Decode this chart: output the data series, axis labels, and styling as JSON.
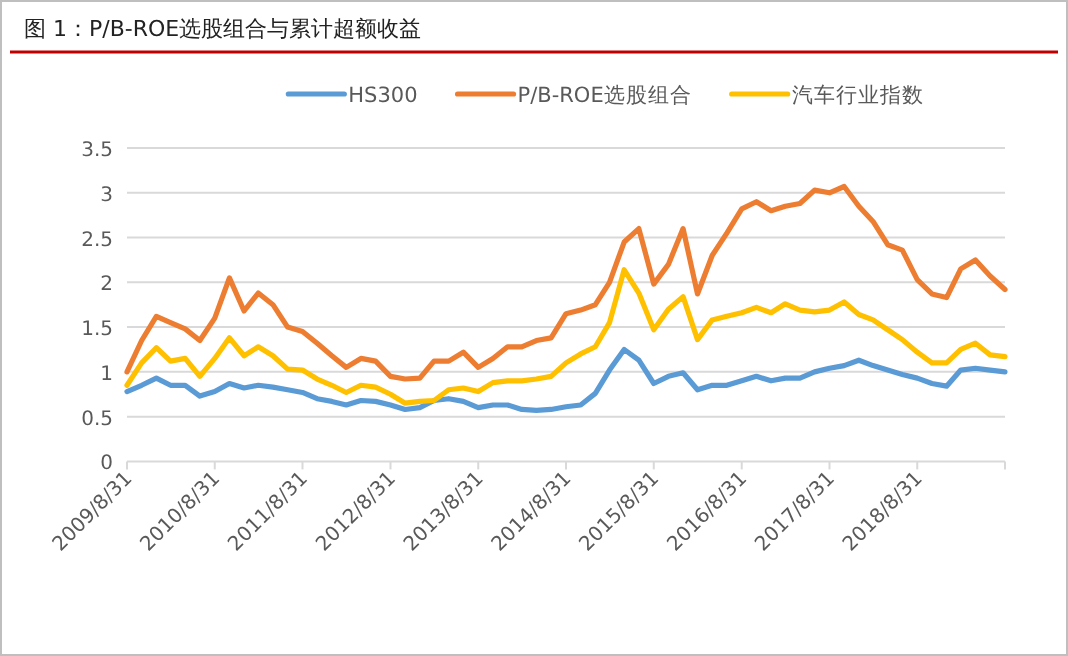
{
  "chart_data": {
    "type": "line",
    "title": "图 1：P/B-ROE选股组合与累计超额收益",
    "x": [
      "2009-08-31",
      "2009-10-31",
      "2009-12-31",
      "2010-02-28",
      "2010-04-30",
      "2010-06-30",
      "2010-08-31",
      "2010-10-31",
      "2010-12-31",
      "2011-02-28",
      "2011-04-30",
      "2011-06-30",
      "2011-08-31",
      "2011-10-31",
      "2011-12-31",
      "2012-02-29",
      "2012-04-30",
      "2012-06-30",
      "2012-08-31",
      "2012-10-31",
      "2012-12-31",
      "2013-02-28",
      "2013-04-30",
      "2013-06-30",
      "2013-08-31",
      "2013-10-31",
      "2013-12-31",
      "2014-02-28",
      "2014-04-30",
      "2014-06-30",
      "2014-08-31",
      "2014-10-31",
      "2014-12-31",
      "2015-02-28",
      "2015-04-30",
      "2015-06-30",
      "2015-08-31",
      "2015-10-31",
      "2015-12-31",
      "2016-02-29",
      "2016-04-30",
      "2016-06-30",
      "2016-08-31",
      "2016-10-31",
      "2016-12-31",
      "2017-02-28",
      "2017-04-30",
      "2017-06-30",
      "2017-08-31",
      "2017-10-31",
      "2017-12-31",
      "2018-02-28",
      "2018-04-30",
      "2018-06-30",
      "2018-08-31",
      "2018-10-31",
      "2018-12-31",
      "2019-02-28",
      "2019-04-30",
      "2019-06-30",
      "2019-08-31"
    ],
    "series": [
      {
        "name": "HS300",
        "color": "#5b9bd5",
        "values": [
          0.78,
          0.85,
          0.93,
          0.85,
          0.85,
          0.73,
          0.78,
          0.87,
          0.82,
          0.85,
          0.83,
          0.8,
          0.77,
          0.7,
          0.67,
          0.63,
          0.68,
          0.67,
          0.63,
          0.58,
          0.6,
          0.68,
          0.7,
          0.67,
          0.6,
          0.63,
          0.63,
          0.58,
          0.57,
          0.58,
          0.61,
          0.63,
          0.76,
          1.02,
          1.25,
          1.13,
          0.87,
          0.95,
          0.99,
          0.8,
          0.85,
          0.85,
          0.9,
          0.95,
          0.9,
          0.93,
          0.93,
          1.0,
          1.04,
          1.07,
          1.13,
          1.07,
          1.02,
          0.97,
          0.93,
          0.87,
          0.84,
          1.02,
          1.04,
          1.02,
          1.0
        ]
      },
      {
        "name": "P/B-ROE选股组合",
        "color": "#ed7d31",
        "values": [
          1.0,
          1.35,
          1.62,
          1.55,
          1.48,
          1.35,
          1.6,
          2.05,
          1.68,
          1.88,
          1.75,
          1.5,
          1.45,
          1.32,
          1.18,
          1.05,
          1.15,
          1.12,
          0.95,
          0.92,
          0.93,
          1.12,
          1.12,
          1.22,
          1.05,
          1.15,
          1.28,
          1.28,
          1.35,
          1.38,
          1.65,
          1.69,
          1.75,
          2.0,
          2.45,
          2.6,
          1.98,
          2.2,
          2.6,
          1.87,
          2.3,
          2.55,
          2.82,
          2.9,
          2.8,
          2.85,
          2.88,
          3.03,
          3.0,
          3.07,
          2.85,
          2.68,
          2.42,
          2.36,
          2.03,
          1.87,
          1.83,
          2.15,
          2.25,
          2.07,
          1.92
        ]
      },
      {
        "name": "汽车行业指数",
        "color": "#ffc000",
        "values": [
          0.85,
          1.1,
          1.27,
          1.12,
          1.15,
          0.95,
          1.15,
          1.38,
          1.18,
          1.28,
          1.18,
          1.03,
          1.02,
          0.92,
          0.85,
          0.77,
          0.85,
          0.83,
          0.75,
          0.65,
          0.67,
          0.68,
          0.8,
          0.82,
          0.78,
          0.88,
          0.9,
          0.9,
          0.92,
          0.95,
          1.1,
          1.2,
          1.28,
          1.55,
          2.14,
          1.88,
          1.47,
          1.7,
          1.84,
          1.36,
          1.58,
          1.62,
          1.66,
          1.72,
          1.66,
          1.76,
          1.69,
          1.67,
          1.69,
          1.78,
          1.64,
          1.58,
          1.47,
          1.36,
          1.22,
          1.1,
          1.1,
          1.25,
          1.32,
          1.19,
          1.17
        ]
      }
    ],
    "xlim": [
      "2009-08-31",
      "2019-08-31"
    ],
    "xticks": [
      {
        "value": "2009-08-31",
        "label": "2009/8/31"
      },
      {
        "value": "2010-08-31",
        "label": "2010/8/31"
      },
      {
        "value": "2011-08-31",
        "label": "2011/8/31"
      },
      {
        "value": "2012-08-31",
        "label": "2012/8/31"
      },
      {
        "value": "2013-08-31",
        "label": "2013/8/31"
      },
      {
        "value": "2014-08-31",
        "label": "2014/8/31"
      },
      {
        "value": "2015-08-31",
        "label": "2015/8/31"
      },
      {
        "value": "2016-08-31",
        "label": "2016/8/31"
      },
      {
        "value": "2017-08-31",
        "label": "2017/8/31"
      },
      {
        "value": "2018-08-31",
        "label": "2018/8/31"
      },
      {
        "value": "2019-08-31",
        "label": null
      }
    ],
    "ylim": [
      0,
      3.5
    ],
    "yticks": [
      0,
      0.5,
      1,
      1.5,
      2,
      2.5,
      3,
      3.5
    ],
    "grid": "y",
    "legend": "top"
  }
}
